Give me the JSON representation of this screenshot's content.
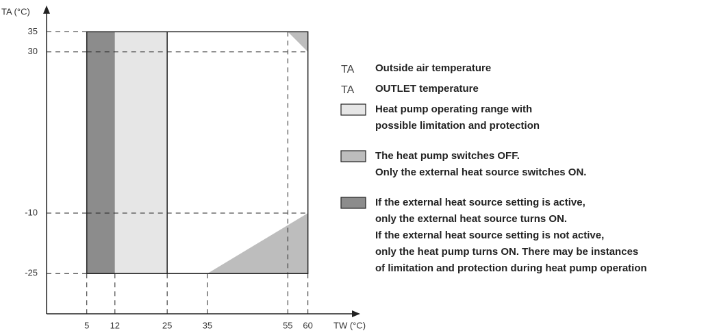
{
  "axes": {
    "y_label": "TA (°C)",
    "x_label": "TW (°C)",
    "xlim": [
      -5,
      73
    ],
    "ylim": [
      -35,
      40
    ],
    "xticks": [
      5,
      12,
      25,
      35,
      55,
      60
    ],
    "yticks": [
      35,
      30,
      -10,
      -25
    ]
  },
  "regions": [
    {
      "color": "#8c8c8c",
      "points": [
        [
          5,
          -25
        ],
        [
          5,
          35
        ],
        [
          12,
          35
        ],
        [
          12,
          -25
        ]
      ]
    },
    {
      "color": "#e6e6e6",
      "points": [
        [
          12,
          -25
        ],
        [
          12,
          35
        ],
        [
          25,
          35
        ],
        [
          25,
          -25
        ]
      ]
    },
    {
      "color": "#bdbdbd",
      "points": [
        [
          55,
          35
        ],
        [
          60,
          35
        ],
        [
          60,
          30
        ]
      ]
    },
    {
      "color": "#bdbdbd",
      "points": [
        [
          35,
          -25
        ],
        [
          60,
          -25
        ],
        [
          60,
          -10
        ]
      ]
    }
  ],
  "lines": [
    {
      "dash": false,
      "points": [
        [
          5,
          -25
        ],
        [
          5,
          35
        ],
        [
          60,
          35
        ],
        [
          60,
          -25
        ],
        [
          5,
          -25
        ]
      ]
    },
    {
      "dash": false,
      "points": [
        [
          25,
          -25
        ],
        [
          25,
          35
        ]
      ]
    },
    {
      "dash": true,
      "points": [
        [
          5,
          30
        ],
        [
          60,
          30
        ]
      ]
    },
    {
      "dash": true,
      "points": [
        [
          5,
          -10
        ],
        [
          60,
          -10
        ]
      ]
    },
    {
      "dash": true,
      "points": [
        [
          55,
          35
        ],
        [
          55,
          -25
        ]
      ]
    }
  ],
  "legend": [
    {
      "symbol": "TA",
      "lines": [
        "Outside air temperature"
      ]
    },
    {
      "symbol": "TA",
      "lines": [
        "OUTLET temperature"
      ]
    },
    {
      "color": "#e6e6e6",
      "lines": [
        "Heat pump operating range with",
        "possible limitation and protection"
      ]
    },
    {
      "color": "#bdbdbd",
      "lines": [
        "The heat pump switches OFF.",
        "Only the external heat source switches ON."
      ]
    },
    {
      "color": "#8c8c8c",
      "lines": [
        "If the external heat source setting is active,",
        "only the external heat source turns ON.",
        "If the external heat source setting is not active,",
        "only the heat pump turns ON. There may be instances",
        "of limitation and protection during heat pump operation"
      ]
    }
  ]
}
